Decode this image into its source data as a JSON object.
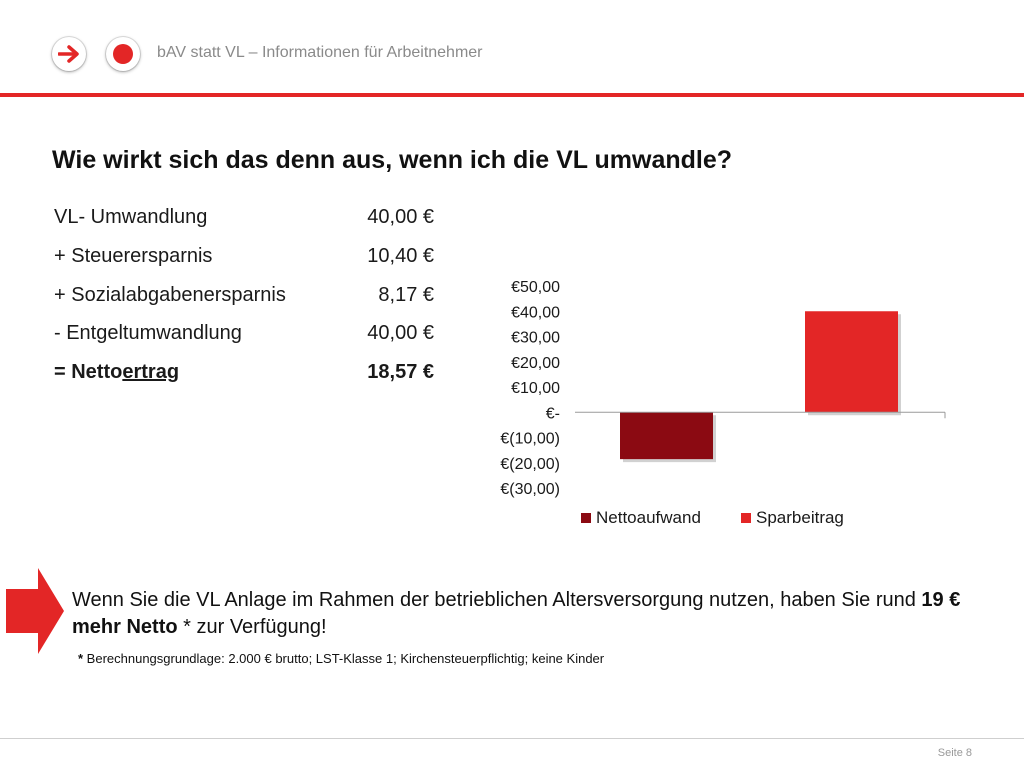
{
  "header": {
    "title": "bAV statt VL – Informationen für Arbeitnehmer",
    "icons": [
      "arrow-right-icon",
      "red-dot-icon"
    ],
    "accent_color": "#e32626"
  },
  "page_title": "Wie wirkt sich das denn aus, wenn ich die VL umwandle?",
  "calculation": [
    {
      "label": "VL- Umwandlung",
      "value": "40,00 €"
    },
    {
      "label": "+ Steuerersparnis",
      "value": "10,40 €"
    },
    {
      "label": "+ Sozialabgabenersparnis",
      "value": "8,17 €"
    },
    {
      "label": "- Entgeltumwandlung",
      "value": "40,00 €"
    }
  ],
  "result": {
    "prefix": "= Netto",
    "underlined": "ertrag",
    "value": "18,57 €"
  },
  "chart_data": {
    "type": "bar",
    "title": "",
    "xlabel": "",
    "ylabel": "",
    "ylim": [
      -30,
      50
    ],
    "ytick_values": [
      50,
      40,
      30,
      20,
      10,
      0,
      -10,
      -20,
      -30
    ],
    "ytick_labels": [
      "€50,00",
      "€40,00",
      "€30,00",
      "€20,00",
      "€10,00",
      "€-",
      "€(10,00)",
      "€(20,00)",
      "€(30,00)"
    ],
    "legend_position": "bottom",
    "series": [
      {
        "name": "Nettoaufwand",
        "values": [
          -18.57
        ],
        "color": "#8b0a12"
      },
      {
        "name": "Sparbeitrag",
        "values": [
          40.0
        ],
        "color": "#e32626"
      }
    ]
  },
  "conclusion": {
    "part1": "Wenn Sie die VL Anlage im Rahmen der betrieblichen Altersversorgung nutzen, haben Sie rund ",
    "bold": "19 € mehr Netto",
    "part2": " * zur Verfügung!"
  },
  "footnote": {
    "asterisk": "*",
    "text": " Berechnungsgrundlage: 2.000 € brutto; LST-Klasse 1; Kirchensteuerpflichtig; keine Kinder"
  },
  "footer": {
    "page_label": "Seite 8"
  }
}
